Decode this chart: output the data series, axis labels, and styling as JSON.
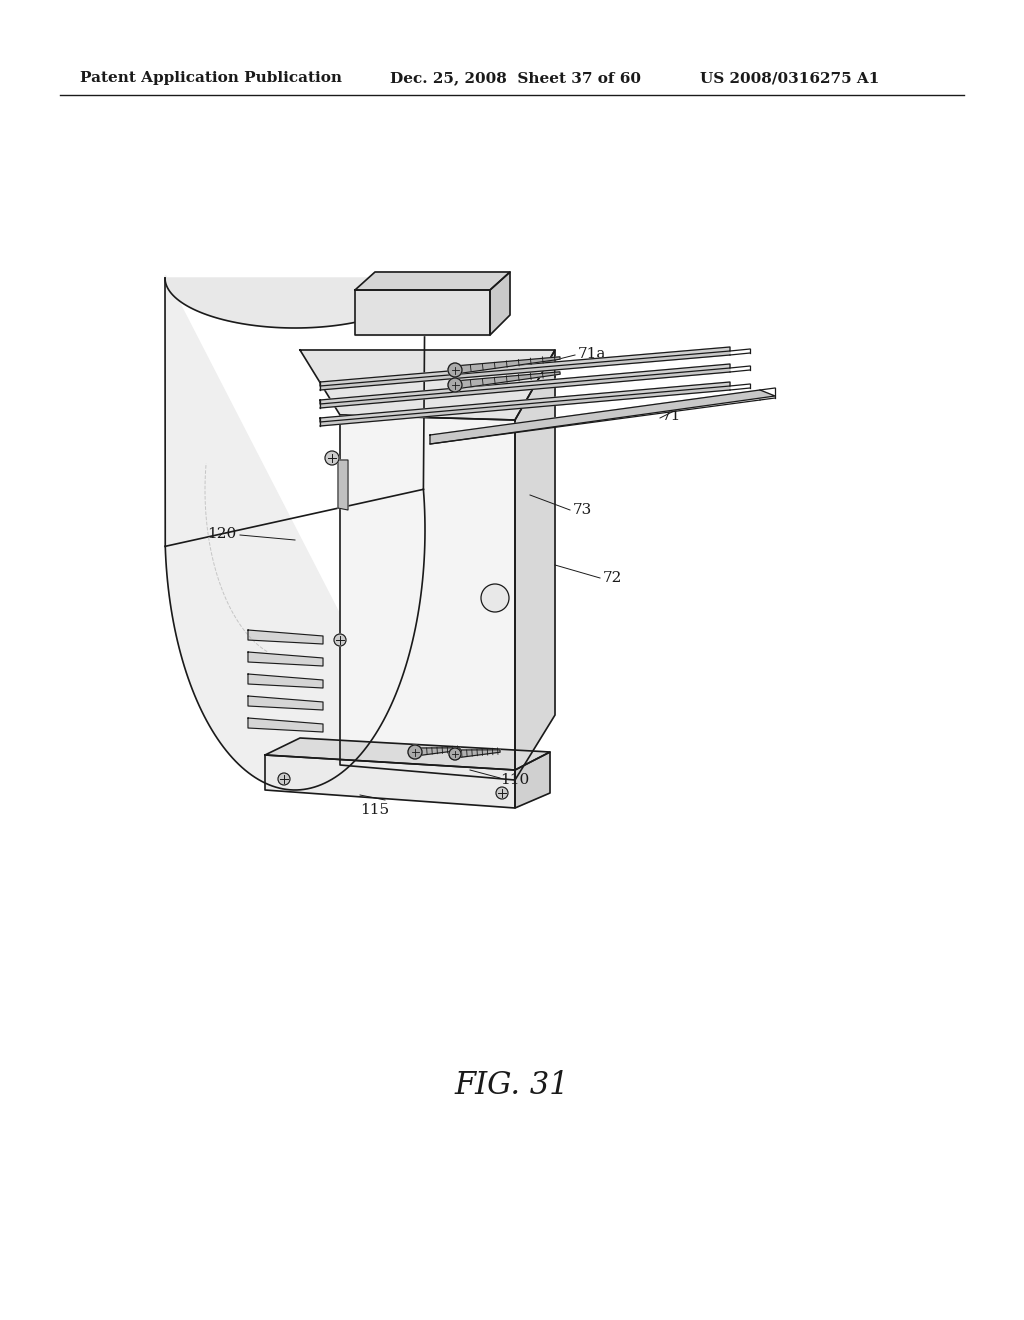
{
  "header_left": "Patent Application Publication",
  "header_mid": "Dec. 25, 2008  Sheet 37 of 60",
  "header_right": "US 2008/0316275 A1",
  "fig_label": "FIG. 31",
  "bg_color": "#ffffff",
  "line_color": "#1a1a1a",
  "header_fontsize": 11,
  "fig_fontsize": 22,
  "label_fontsize": 11
}
